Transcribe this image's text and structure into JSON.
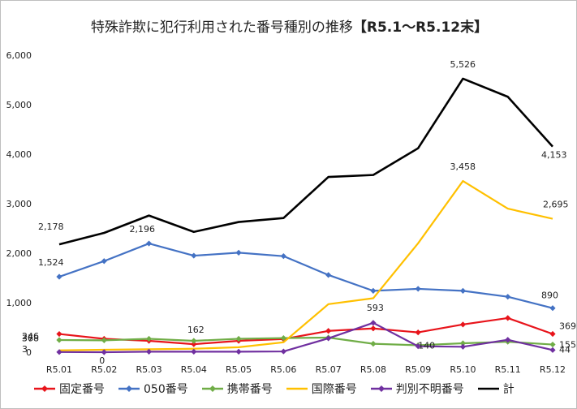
{
  "chart_data": {
    "type": "line",
    "title": "特殊詐欺に犯行利用された番号種別の推移",
    "title_range": "【R5.1～R5.12末】",
    "categories": [
      "R5.01",
      "R5.02",
      "R5.03",
      "R5.04",
      "R5.05",
      "R5.06",
      "R5.07",
      "R5.08",
      "R5.09",
      "R5.10",
      "R5.11",
      "R5.12"
    ],
    "ylim": [
      0,
      6000
    ],
    "yticks": [
      "0",
      "1,000",
      "2,000",
      "3,000",
      "4,000",
      "5,000",
      "6,000"
    ],
    "grid": false,
    "legend_position": "bottom",
    "series": [
      {
        "name": "固定番号",
        "color": "#e8141b",
        "marker": "diamond",
        "values": [
          368,
          270,
          230,
          162,
          230,
          265,
          430,
          480,
          400,
          560,
          690,
          369
        ]
      },
      {
        "name": "050番号",
        "color": "#4472c4",
        "marker": "diamond",
        "values": [
          1524,
          1840,
          2196,
          1950,
          2010,
          1940,
          1560,
          1240,
          1280,
          1240,
          1120,
          890
        ]
      },
      {
        "name": "携帯番号",
        "color": "#70ad47",
        "marker": "diamond",
        "values": [
          246,
          240,
          270,
          230,
          270,
          285,
          295,
          170,
          140,
          180,
          210,
          155
        ]
      },
      {
        "name": "国際番号",
        "color": "#ffc000",
        "marker": "none",
        "values": [
          37,
          50,
          60,
          70,
          100,
          200,
          970,
          1090,
          2200,
          3458,
          2900,
          2695
        ]
      },
      {
        "name": "判別不明番号",
        "color": "#7030a0",
        "marker": "diamond",
        "values": [
          3,
          0,
          10,
          10,
          10,
          15,
          280,
          593,
          120,
          110,
          250,
          44
        ]
      },
      {
        "name": "計",
        "color": "#000000",
        "marker": "none",
        "values": [
          2178,
          2410,
          2760,
          2430,
          2630,
          2710,
          3540,
          3580,
          4120,
          5526,
          5160,
          4153
        ]
      }
    ],
    "data_labels": [
      {
        "text": "2,178",
        "series": 5,
        "index": 0
      },
      {
        "text": "2,196",
        "series": 1,
        "index": 2
      },
      {
        "text": "5,526",
        "series": 5,
        "index": 9
      },
      {
        "text": "4,153",
        "series": 5,
        "index": 11
      },
      {
        "text": "3,458",
        "series": 3,
        "index": 9
      },
      {
        "text": "2,695",
        "series": 3,
        "index": 11
      },
      {
        "text": "1,524",
        "series": 1,
        "index": 0
      },
      {
        "text": "890",
        "series": 1,
        "index": 11
      },
      {
        "text": "368",
        "series": 0,
        "index": 0
      },
      {
        "text": "246",
        "series": 2,
        "index": 0
      },
      {
        "text": "37",
        "series": 3,
        "index": 0
      },
      {
        "text": "3",
        "series": 4,
        "index": 0
      },
      {
        "text": "0",
        "series": 4,
        "index": 1
      },
      {
        "text": "162",
        "series": 0,
        "index": 3
      },
      {
        "text": "593",
        "series": 4,
        "index": 7
      },
      {
        "text": "140",
        "series": 2,
        "index": 8
      },
      {
        "text": "369",
        "series": 0,
        "index": 11
      },
      {
        "text": "155",
        "series": 2,
        "index": 11
      },
      {
        "text": "44",
        "series": 4,
        "index": 11
      }
    ]
  }
}
